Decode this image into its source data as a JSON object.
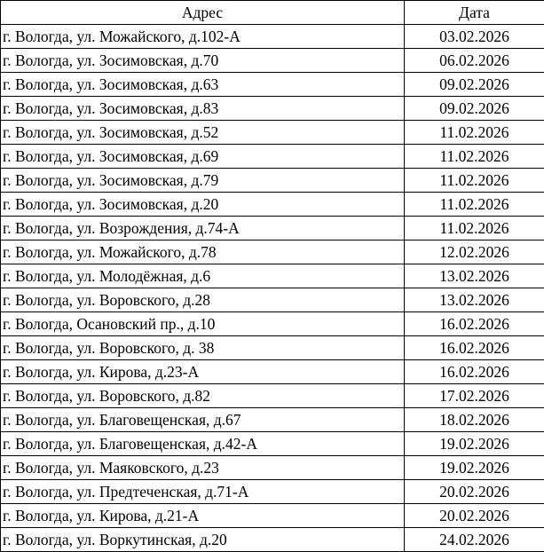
{
  "table": {
    "columns": [
      "Адрес",
      "Дата"
    ],
    "rows": [
      {
        "address": "г. Вологда, ул. Можайского, д.102-А",
        "date": "03.02.2026"
      },
      {
        "address": "г. Вологда, ул. Зосимовская, д.70",
        "date": "06.02.2026"
      },
      {
        "address": "г. Вологда, ул. Зосимовская, д.63",
        "date": "09.02.2026"
      },
      {
        "address": "г. Вологда, ул. Зосимовская, д.83",
        "date": "09.02.2026"
      },
      {
        "address": "г. Вологда, ул. Зосимовская, д.52",
        "date": "11.02.2026"
      },
      {
        "address": "г. Вологда, ул. Зосимовская, д.69",
        "date": "11.02.2026"
      },
      {
        "address": "г. Вологда, ул. Зосимовская, д.79",
        "date": "11.02.2026"
      },
      {
        "address": "г. Вологда, ул. Зосимовская, д.20",
        "date": "11.02.2026"
      },
      {
        "address": "г. Вологда, ул. Возрождения, д.74-А",
        "date": "11.02.2026"
      },
      {
        "address": "г. Вологда, ул. Можайского, д.78",
        "date": "12.02.2026"
      },
      {
        "address": "г. Вологда, ул. Молодёжная, д.6",
        "date": "13.02.2026"
      },
      {
        "address": "г. Вологда, ул. Воровского, д.28",
        "date": "13.02.2026"
      },
      {
        "address": "г. Вологда, Осановский пр., д.10",
        "date": "16.02.2026"
      },
      {
        "address": "г. Вологда, ул. Воровского, д. 38",
        "date": "16.02.2026"
      },
      {
        "address": "г. Вологда, ул. Кирова, д.23-А",
        "date": "16.02.2026"
      },
      {
        "address": "г. Вологда, ул. Воровского, д.82",
        "date": "17.02.2026"
      },
      {
        "address": "г. Вологда, ул. Благовещенская, д.67",
        "date": "18.02.2026"
      },
      {
        "address": "г. Вологда, ул. Благовещенская, д.42-А",
        "date": "19.02.2026"
      },
      {
        "address": "г. Вологда, ул. Маяковского, д.23",
        "date": "19.02.2026"
      },
      {
        "address": "г. Вологда, ул. Предтеченская, д.71-А",
        "date": "20.02.2026"
      },
      {
        "address": "г. Вологда, ул. Кирова, д.21-А",
        "date": "20.02.2026"
      },
      {
        "address": "г. Вологда, ул. Воркутинская, д.20",
        "date": "24.02.2026"
      }
    ]
  },
  "colors": {
    "background": "#ffffff",
    "text": "#000000",
    "border": "#000000"
  }
}
